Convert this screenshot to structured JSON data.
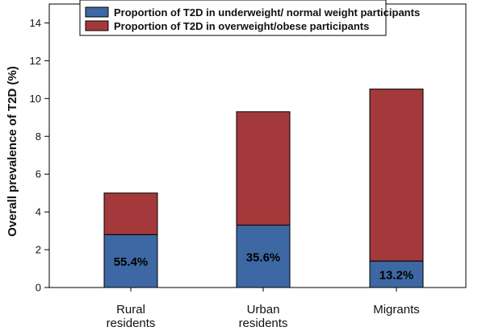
{
  "chart_data": {
    "type": "bar",
    "stacked": true,
    "title": "",
    "xlabel": "",
    "ylabel": "Overall prevalence of T2D (%)",
    "ylim": [
      0,
      15
    ],
    "yticks": [
      0,
      2,
      4,
      6,
      8,
      10,
      12,
      14
    ],
    "grid": false,
    "legend_placement": "top",
    "categories": [
      [
        "Rural",
        "residents"
      ],
      [
        "Urban",
        "residents"
      ],
      [
        "Migrants"
      ]
    ],
    "totals": [
      5.0,
      9.3,
      10.5
    ],
    "series": [
      {
        "name": "Proportion of T2D in underweight/ normal weight participants",
        "color": "#3d68a3",
        "values": [
          2.8,
          3.3,
          1.4
        ],
        "labels": [
          "55.4%",
          "35.6%",
          "13.2%"
        ]
      },
      {
        "name": "Proportion of T2D in overweight/obese participants",
        "color": "#a3393b",
        "values": [
          2.2,
          6.0,
          9.1
        ]
      }
    ]
  }
}
